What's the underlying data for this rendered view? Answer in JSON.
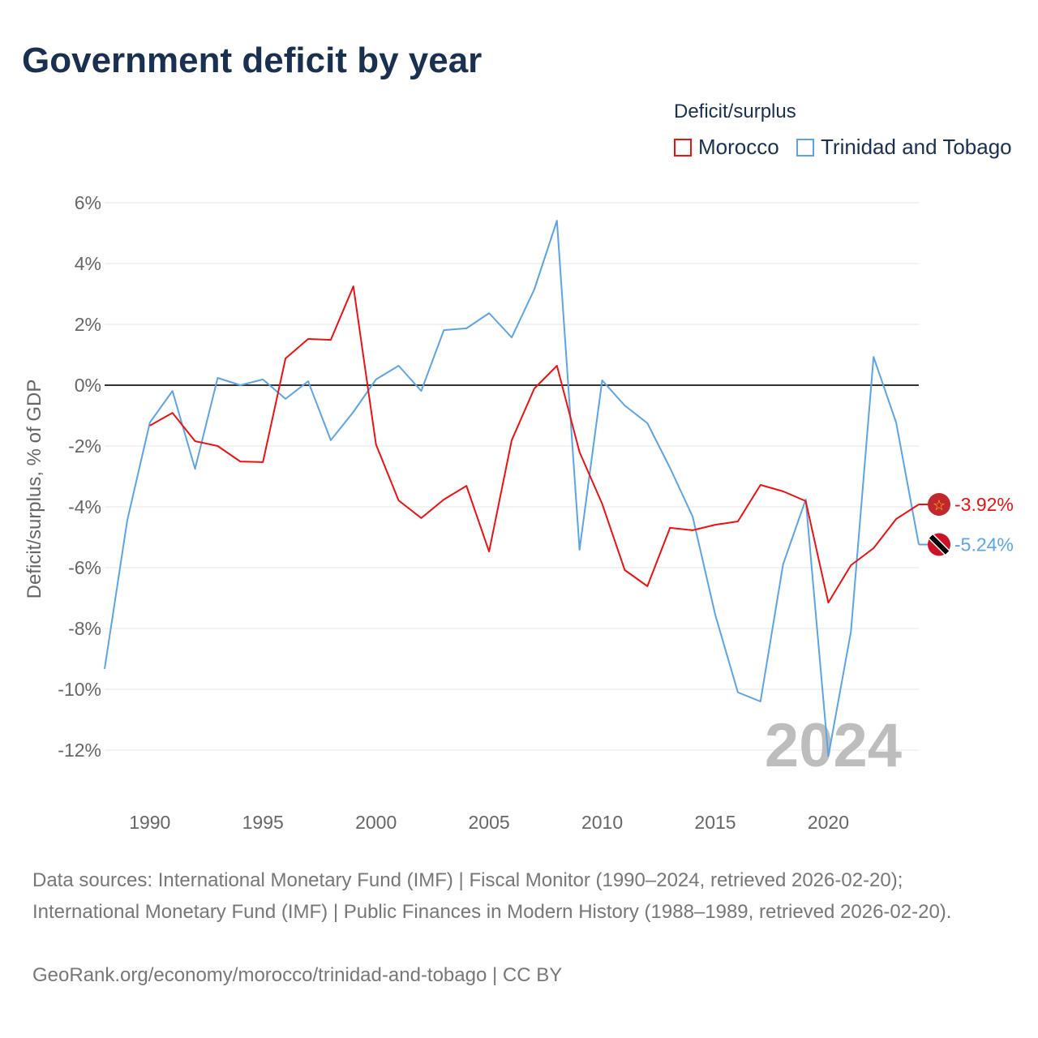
{
  "title": "Government deficit by year",
  "legend": {
    "title": "Deficit/surplus",
    "items": [
      "Morocco",
      "Trinidad and Tobago"
    ]
  },
  "colors": {
    "Morocco": "#ee1111",
    "Trinidad and Tobago": "#5ba4e6",
    "title": "#1a3050"
  },
  "year_watermark": "2024",
  "chart_data": {
    "type": "line",
    "title": "Government deficit by year",
    "xlabel": "",
    "ylabel": "Deficit/surplus, % of GDP",
    "xlim": [
      1988,
      2024
    ],
    "ylim": [
      -13,
      6.5
    ],
    "yticks": [
      6,
      4,
      2,
      0,
      -2,
      -4,
      -6,
      -8,
      -10,
      -12
    ],
    "ytick_labels": [
      "6%",
      "4%",
      "2%",
      "0%",
      "-2%",
      "-4%",
      "-6%",
      "-8%",
      "-10%",
      "-12%"
    ],
    "xticks": [
      1990,
      1995,
      2000,
      2005,
      2010,
      2015,
      2020
    ],
    "xtick_labels": [
      "1990",
      "1995",
      "2000",
      "2005",
      "2010",
      "2015",
      "2020"
    ],
    "grid": true,
    "legend_position": "top-right",
    "series": [
      {
        "name": "Morocco",
        "start_year": 1990,
        "end_label": "-3.92%",
        "values": [
          -1.33,
          -0.91,
          -1.84,
          -2.0,
          -2.51,
          -2.53,
          0.88,
          1.52,
          1.49,
          3.25,
          -1.95,
          -3.79,
          -4.37,
          -3.76,
          -3.31,
          -5.47,
          -1.81,
          -0.11,
          0.64,
          -2.2,
          -3.9,
          -6.08,
          -6.61,
          -4.69,
          -4.77,
          -4.59,
          -4.48,
          -3.28,
          -3.49,
          -3.81,
          -7.15,
          -5.92,
          -5.36,
          -4.4,
          -3.92
        ]
      },
      {
        "name": "Trinidad and Tobago",
        "start_year": 1988,
        "end_label": "-5.24%",
        "values": [
          -9.33,
          -4.45,
          -1.23,
          -0.19,
          -2.75,
          0.24,
          0.0,
          0.19,
          -0.45,
          0.13,
          -1.81,
          -0.88,
          0.19,
          0.64,
          -0.19,
          1.81,
          1.87,
          2.37,
          1.57,
          3.15,
          5.41,
          -5.41,
          0.16,
          -0.67,
          -1.25,
          -2.72,
          -4.32,
          -7.55,
          -10.1,
          -10.4,
          -5.89,
          -3.76,
          -12.2,
          -8.1,
          0.93,
          -1.23,
          -5.24
        ]
      }
    ]
  },
  "footer": {
    "sources": "Data sources: International Monetary Fund (IMF) | Fiscal Monitor (1990–2024, retrieved 2026-02-20); International Monetary Fund (IMF) | Public Finances in Modern History (1988–1989, retrieved 2026-02-20).",
    "link": "GeoRank.org/economy/morocco/trinidad-and-tobago | CC BY"
  }
}
